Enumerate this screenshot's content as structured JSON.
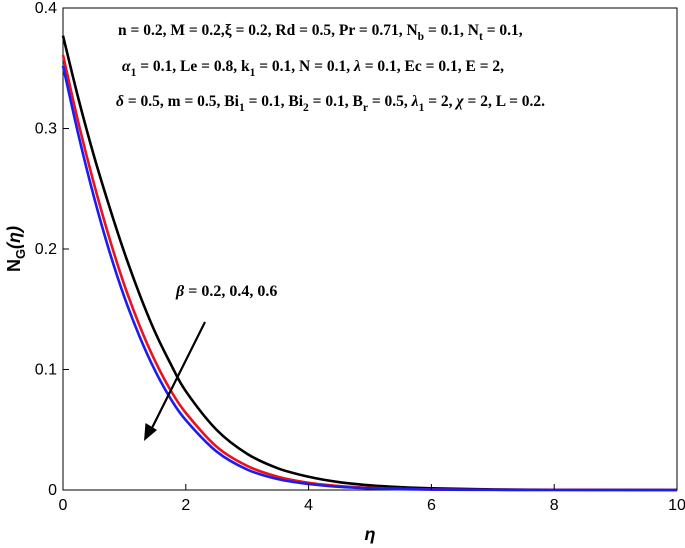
{
  "chart_data": {
    "type": "line",
    "xlabel": "η",
    "ylabel_main": "N",
    "ylabel_sub": "G",
    "ylabel_arg": "(η)",
    "xlim": [
      0,
      10
    ],
    "ylim": [
      0,
      0.4
    ],
    "xticks": [
      "0",
      "2",
      "4",
      "6",
      "8",
      "10"
    ],
    "yticks": [
      "0",
      "0.1",
      "0.2",
      "0.3",
      "0.4"
    ],
    "grid": false,
    "parameters": [
      "n = 0.2, M = 0.2, ξ = 0.2, Rd = 0.5, Pr = 0.71, N_b = 0.1, N_t = 0.1,",
      "α_1 = 0.1, Le = 0.8, k_1 = 0.1, N = 0.1, λ = 0.1, Ec = 0.1, E = 2,",
      "δ = 0.5, m = 0.5, Bi_1 = 0.1, Bi_2 = 0.1, B_r = 0.5, λ_1 = 2, χ = 2, L = 0.2."
    ],
    "annotation": "β = 0.2, 0.4, 0.6",
    "x": [
      0,
      0.25,
      0.5,
      0.75,
      1,
      1.25,
      1.5,
      1.75,
      2,
      2.5,
      3,
      3.5,
      4,
      4.5,
      5,
      5.5,
      6,
      7,
      8,
      9,
      10
    ],
    "series": [
      {
        "color": "#000000",
        "values": [
          0.377,
          0.325,
          0.278,
          0.236,
          0.197,
          0.162,
          0.131,
          0.105,
          0.082,
          0.05,
          0.03,
          0.018,
          0.011,
          0.0065,
          0.0039,
          0.0023,
          0.0014,
          0.0005,
          0.0002,
          0.0001,
          0.0
        ]
      },
      {
        "color": "#e8131b",
        "values": [
          0.361,
          0.305,
          0.255,
          0.21,
          0.17,
          0.136,
          0.107,
          0.083,
          0.064,
          0.036,
          0.02,
          0.011,
          0.006,
          0.0033,
          0.0018,
          0.001,
          0.0005,
          0.0002,
          0.0001,
          0.0,
          0.0
        ]
      },
      {
        "color": "#1c1cf0",
        "values": [
          0.352,
          0.295,
          0.244,
          0.199,
          0.16,
          0.127,
          0.099,
          0.076,
          0.058,
          0.032,
          0.017,
          0.009,
          0.005,
          0.0026,
          0.0014,
          0.0007,
          0.0004,
          0.0001,
          0.0,
          0.0,
          0.0
        ]
      }
    ]
  }
}
